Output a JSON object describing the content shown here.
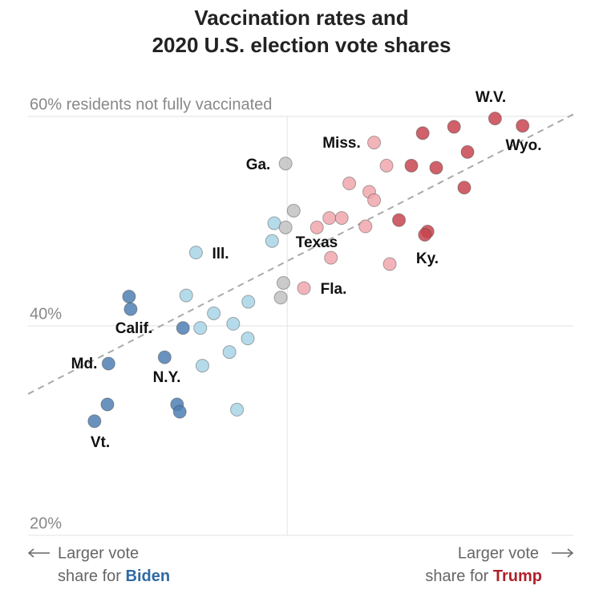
{
  "chart_data": {
    "type": "scatter",
    "title": [
      "Vaccination rates and",
      "2020 U.S. election vote shares"
    ],
    "xlim": [
      -48,
      53
    ],
    "ylim": [
      20,
      60
    ],
    "yticks": [
      {
        "value": 20,
        "label": "20%"
      },
      {
        "value": 40,
        "label": "40%"
      },
      {
        "value": 60,
        "label": "60% residents not fully vaccinated"
      }
    ],
    "grid": true,
    "x_label_left": {
      "line1": "Larger vote",
      "line2": "share for",
      "emphasis": "Biden",
      "color": "#2f6aa3"
    },
    "x_label_right": {
      "line1": "Larger vote",
      "line2": "share for",
      "emphasis": "Trump",
      "color": "#b0202a"
    },
    "trendline": {
      "x": [
        -48,
        53
      ],
      "y": [
        33.5,
        60.2
      ],
      "color": "#aaaaaa"
    },
    "series": [
      {
        "color": "#4f7fb3",
        "x": [
          -29.3,
          -29.0,
          -33.1,
          -35.7,
          -33.3,
          -19.3,
          -22.7,
          -20.4,
          -19.9
        ],
        "values": [
          42.8,
          41.6,
          36.4,
          30.9,
          32.5,
          39.8,
          37.0,
          32.5,
          31.8
        ]
      },
      {
        "color": "#a8d5e8",
        "x": [
          -2.4,
          -2.8,
          -16.9,
          -18.7,
          -13.6,
          -7.2,
          -16.1,
          -10.0,
          -15.7,
          -10.7,
          -7.3,
          -9.3
        ],
        "values": [
          49.8,
          48.1,
          47.0,
          42.9,
          41.2,
          42.3,
          39.8,
          40.2,
          36.2,
          37.5,
          38.8,
          32.0
        ]
      },
      {
        "color": "#c2c2c2",
        "x": [
          -0.3,
          1.2,
          -0.3,
          -0.7,
          -1.2
        ],
        "values": [
          55.5,
          51.0,
          49.4,
          44.1,
          42.7
        ]
      },
      {
        "color": "#f1a7ad",
        "x": [
          16.1,
          18.4,
          11.5,
          15.2,
          16.1,
          7.8,
          10.1,
          5.5,
          14.5,
          8.1,
          19.0,
          3.1
        ],
        "values": [
          57.5,
          55.3,
          53.6,
          52.8,
          52.0,
          50.3,
          50.3,
          49.4,
          49.5,
          46.5,
          45.9,
          43.6
        ]
      },
      {
        "color": "#c8444f",
        "x": [
          38.5,
          43.6,
          30.9,
          25.1,
          23.0,
          27.6,
          33.4,
          32.8,
          20.7,
          26.0,
          25.5
        ],
        "values": [
          59.8,
          59.1,
          59.0,
          58.4,
          55.3,
          55.1,
          56.6,
          53.2,
          50.1,
          49.0,
          48.7
        ]
      }
    ],
    "annotations": [
      "W.V.",
      "Wyo.",
      "Miss.",
      "Ga.",
      "Texas",
      "Ill.",
      "Ky.",
      "Fla.",
      "Calif.",
      "Md.",
      "N.Y.",
      "Vt."
    ]
  }
}
